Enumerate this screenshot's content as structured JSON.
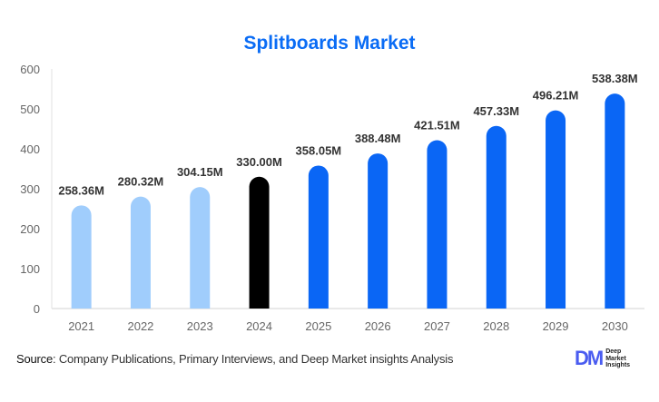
{
  "chart_data": {
    "type": "bar",
    "title": "Splitboards Market",
    "xlabel": "",
    "ylabel": "",
    "categories": [
      "2021",
      "2022",
      "2023",
      "2024",
      "2025",
      "2026",
      "2027",
      "2028",
      "2029",
      "2030"
    ],
    "values": [
      258.36,
      280.32,
      304.15,
      330.0,
      358.05,
      388.48,
      421.51,
      457.33,
      496.21,
      538.38
    ],
    "data_labels": [
      "258.36M",
      "280.32M",
      "304.15M",
      "330.00M",
      "358.05M",
      "388.48M",
      "421.51M",
      "457.33M",
      "496.21M",
      "538.38M"
    ],
    "ylim": [
      0,
      600
    ],
    "yticks": [
      0,
      100,
      200,
      300,
      400,
      500,
      600
    ],
    "grid": false,
    "colors": {
      "historical": "#a0cdfc",
      "current": "#000000",
      "forecast": "#0a66f5"
    },
    "bar_types": [
      "historical",
      "historical",
      "historical",
      "current",
      "forecast",
      "forecast",
      "forecast",
      "forecast",
      "forecast",
      "forecast"
    ]
  },
  "footer": {
    "source_label": "Source",
    "source_text": ": Company Publications, Primary Interviews, and Deep Market insights Analysis",
    "logo_mark": "DM",
    "logo_text": [
      "Deep",
      "Market",
      "Insights"
    ]
  }
}
